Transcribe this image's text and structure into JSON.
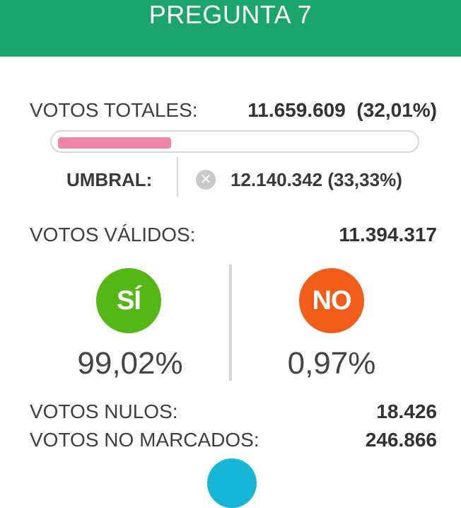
{
  "header": {
    "title": "PREGUNTA 7"
  },
  "totales": {
    "label": "VOTOS TOTALES:",
    "value": "11.659.609  (32,01%)",
    "progress_percent": 32.01
  },
  "umbral": {
    "label": "UMBRAL:",
    "value": "12.140.342 (33,33%)",
    "icon": "close-circle-icon",
    "icon_glyph": "✕"
  },
  "validos": {
    "label": "VOTOS VÁLIDOS:",
    "value": "11.394.317"
  },
  "si": {
    "label": "SÍ",
    "percent": "99,02%",
    "color": "#55b716"
  },
  "no": {
    "label": "NO",
    "percent": "0,97%",
    "color": "#f25c19"
  },
  "nulos": {
    "label": "VOTOS NULOS:",
    "value": "18.426"
  },
  "no_marcados": {
    "label": "VOTOS NO MARCADOS:",
    "value": "246.866"
  },
  "colors": {
    "header": "#1aa56b",
    "progress": "#ef86a8",
    "accent_circle": "#16b6d6"
  }
}
